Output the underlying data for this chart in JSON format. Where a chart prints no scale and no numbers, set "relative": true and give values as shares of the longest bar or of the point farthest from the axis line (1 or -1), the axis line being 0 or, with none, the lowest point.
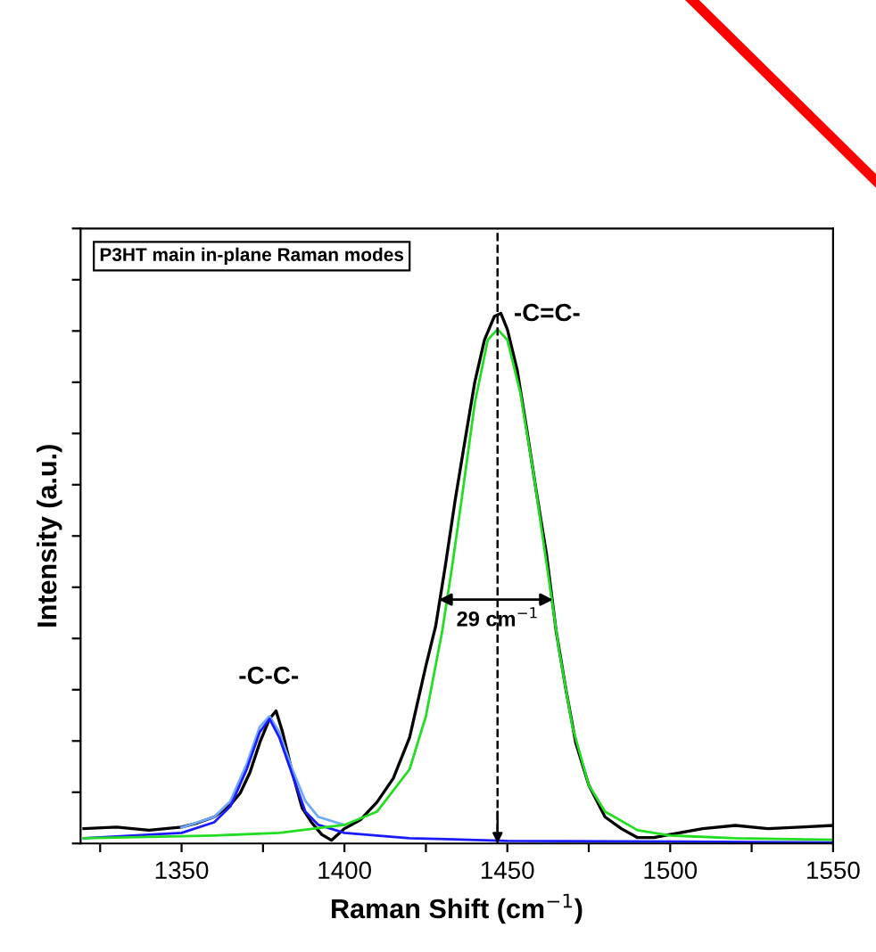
{
  "chart_data": {
    "type": "line",
    "relative": true,
    "xlabel": "Raman Shift (cm$^{−1}$)",
    "ylabel": "Intensity (a.u.)",
    "xlim": [
      1319,
      1550
    ],
    "xticks": [
      {
        "value": 1325,
        "label": null
      },
      1350,
      {
        "value": 1375,
        "label": null
      },
      1400,
      {
        "value": 1425,
        "label": null
      },
      1450,
      {
        "value": 1475,
        "label": null
      },
      1500,
      {
        "value": 1525,
        "label": null
      },
      1550
    ],
    "tick_labels": "x",
    "grid": false,
    "legend": false,
    "marker": "none",
    "line_style": "solid",
    "series": [
      {
        "color": "#000000",
        "x": [
          1320,
          1330,
          1340,
          1350,
          1355,
          1360,
          1365,
          1368,
          1371,
          1374,
          1377,
          1379,
          1381,
          1384,
          1387,
          1390,
          1393,
          1396,
          1400,
          1405,
          1410,
          1415,
          1420,
          1425,
          1428,
          1431,
          1434,
          1437,
          1440,
          1443,
          1446,
          1448,
          1450,
          1453,
          1456,
          1459,
          1462,
          1465,
          1468,
          1471,
          1475,
          1480,
          1485,
          1490,
          1495,
          1500,
          1510,
          1520,
          1530,
          1540,
          1550
        ],
        "values": [
          0.028,
          0.031,
          0.025,
          0.031,
          0.039,
          0.05,
          0.073,
          0.095,
          0.134,
          0.19,
          0.235,
          0.25,
          0.21,
          0.134,
          0.067,
          0.039,
          0.017,
          0.006,
          0.028,
          0.045,
          0.078,
          0.123,
          0.2,
          0.335,
          0.41,
          0.525,
          0.648,
          0.76,
          0.87,
          0.95,
          0.994,
          1.0,
          0.97,
          0.894,
          0.78,
          0.66,
          0.547,
          0.4,
          0.29,
          0.19,
          0.11,
          0.05,
          0.028,
          0.011,
          0.011,
          0.017,
          0.028,
          0.034,
          0.028,
          0.031,
          0.034
        ]
      },
      {
        "color": "#6fa8ff",
        "x": [
          1350,
          1360,
          1365,
          1370,
          1374,
          1377,
          1380,
          1384,
          1388,
          1392,
          1400
        ],
        "values": [
          0.03,
          0.05,
          0.08,
          0.15,
          0.22,
          0.24,
          0.21,
          0.14,
          0.08,
          0.05,
          0.035
        ]
      },
      {
        "color": "#1a1aff",
        "x": [
          1320,
          1350,
          1360,
          1365,
          1370,
          1374,
          1377,
          1380,
          1384,
          1388,
          1392,
          1400,
          1420,
          1450,
          1550
        ],
        "values": [
          0.01,
          0.02,
          0.04,
          0.07,
          0.14,
          0.21,
          0.235,
          0.2,
          0.13,
          0.06,
          0.035,
          0.02,
          0.01,
          0.005,
          0.002
        ]
      },
      {
        "color": "#22dd22",
        "x": [
          1320,
          1360,
          1380,
          1400,
          1410,
          1420,
          1425,
          1430,
          1433,
          1436,
          1440,
          1444,
          1447,
          1450,
          1454,
          1458,
          1462,
          1466,
          1470,
          1475,
          1480,
          1490,
          1500,
          1520,
          1550
        ],
        "values": [
          0.01,
          0.015,
          0.02,
          0.035,
          0.06,
          0.14,
          0.24,
          0.4,
          0.52,
          0.65,
          0.83,
          0.95,
          0.97,
          0.95,
          0.85,
          0.7,
          0.53,
          0.36,
          0.22,
          0.11,
          0.06,
          0.025,
          0.015,
          0.01,
          0.007
        ]
      }
    ],
    "ref_lines": [
      {
        "axis": "x",
        "value": 1447,
        "line_style": "dashed",
        "color": "#000000"
      }
    ],
    "annotations": [
      "P3HT main in-plane Raman modes",
      "-C=C-",
      "-C-C-",
      {
        "text": "29 cm$^{−1}$",
        "x": 1447,
        "y": 0.42
      }
    ]
  }
}
